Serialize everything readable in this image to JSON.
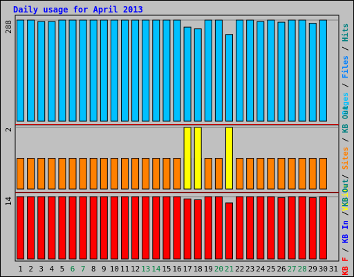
{
  "chart_data": {
    "type": "bar",
    "title": "Daily usage for April 2013",
    "categories": [
      "1",
      "2",
      "3",
      "4",
      "5",
      "6",
      "7",
      "8",
      "9",
      "10",
      "11",
      "12",
      "13",
      "14",
      "15",
      "16",
      "17",
      "18",
      "19",
      "20",
      "21",
      "22",
      "23",
      "24",
      "25",
      "26",
      "27",
      "28",
      "29",
      "30",
      "31"
    ],
    "weekend_days": [
      "6",
      "7",
      "13",
      "14",
      "20",
      "21",
      "27",
      "28"
    ],
    "colors": {
      "title": "#0000ff",
      "pages": "#00c0ff",
      "files": "#0080ff",
      "hits": "#008080",
      "sites": "#ff8000",
      "visits": "#ffff00",
      "kbf": "#ff0000",
      "kbin": "#0000ff",
      "kbout": "#008080",
      "weekend_tick": "#008040",
      "weekday_tick": "#000000",
      "background": "#c0c0c0",
      "separator": "#ff0000"
    },
    "panels": [
      {
        "id": "top",
        "max_label": "288",
        "ymax": 288,
        "right_label": [
          {
            "text": "Pages",
            "color": "#00c0ff"
          },
          {
            "text": " / ",
            "color": "#000000"
          },
          {
            "text": "Files",
            "color": "#0080ff"
          },
          {
            "text": " / ",
            "color": "#000000"
          },
          {
            "text": "Hits",
            "color": "#008080"
          }
        ],
        "series": [
          {
            "key": "hits",
            "color": "#00c0ff",
            "values": [
              288,
              288,
              284,
              284,
              288,
              288,
              288,
              288,
              288,
              288,
              288,
              288,
              288,
              288,
              288,
              288,
              268,
              263,
              288,
              288,
              247,
              288,
              288,
              284,
              288,
              282,
              288,
              288,
              279,
              288,
              null
            ]
          }
        ]
      },
      {
        "id": "middle",
        "max_label": "2",
        "ymax": 2,
        "right_label": [
          {
            "text": "Visits",
            "color": "#ffff00"
          },
          {
            "text": " / ",
            "color": "#000000"
          },
          {
            "text": "Sites",
            "color": "#ff8000"
          },
          {
            "text": " / ",
            "color": "#000000"
          },
          {
            "text": "KB Out",
            "color": "#008080"
          }
        ],
        "series": [
          {
            "key": "sites",
            "color": "#ff8000",
            "values": [
              1,
              1,
              1,
              1,
              1,
              1,
              1,
              1,
              1,
              1,
              1,
              1,
              1,
              1,
              1,
              1,
              1,
              1,
              1,
              1,
              1,
              1,
              1,
              1,
              1,
              1,
              1,
              1,
              1,
              1,
              null
            ]
          },
          {
            "key": "visits",
            "color": "#ffff00",
            "values": [
              0,
              0,
              0,
              0,
              0,
              0,
              0,
              0,
              0,
              0,
              0,
              0,
              0,
              0,
              0,
              0,
              2,
              2,
              0,
              0,
              2,
              0,
              0,
              0,
              0,
              0,
              0,
              0,
              0,
              0,
              null
            ]
          }
        ]
      },
      {
        "id": "bottom",
        "max_label": "14",
        "ymax": 14,
        "right_label": [
          {
            "text": "KB F",
            "color": "#ff0000"
          },
          {
            "text": " / ",
            "color": "#000000"
          },
          {
            "text": "KB In",
            "color": "#0000ff"
          },
          {
            "text": " / ",
            "color": "#000000"
          },
          {
            "text": "KB Out",
            "color": "#008080"
          }
        ],
        "series": [
          {
            "key": "kbf",
            "color": "#ff0000",
            "values": [
              14,
              14,
              14,
              14,
              14,
              14,
              14,
              14,
              14,
              14,
              14,
              14,
              14,
              14,
              14,
              14,
              13.5,
              13.3,
              14,
              14,
              12.6,
              14,
              14,
              14,
              14,
              13.8,
              14,
              14,
              13.8,
              14,
              null
            ]
          }
        ]
      }
    ]
  }
}
